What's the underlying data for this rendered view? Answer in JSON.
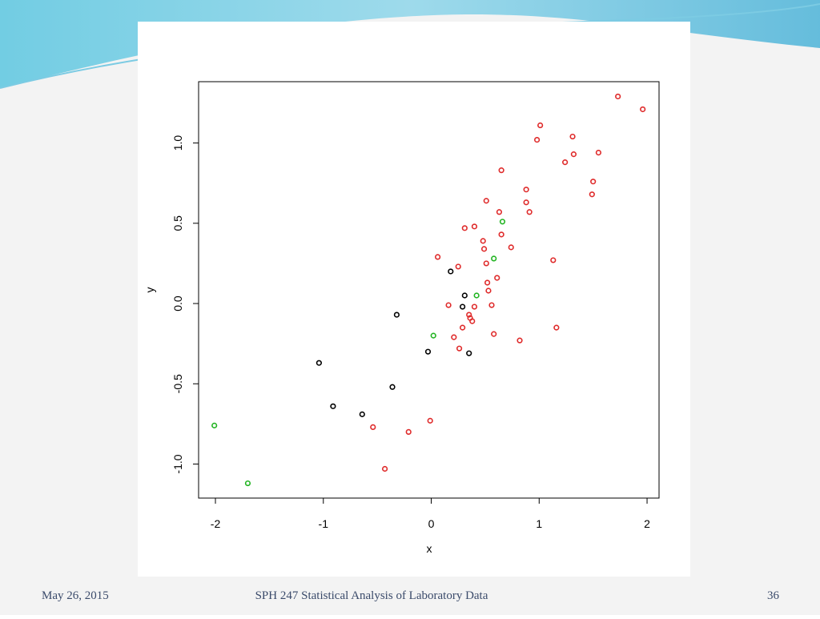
{
  "chart_data": {
    "type": "scatter",
    "xlabel": "x",
    "ylabel": "y",
    "xlim": [
      -2.156,
      2.111
    ],
    "ylim": [
      -1.212,
      1.382
    ],
    "xticks": [
      -2,
      -1,
      0,
      1,
      2
    ],
    "yticks": [
      {
        "value": -1,
        "label": "-1.0"
      },
      {
        "value": -0.5,
        "label": "-0.5"
      },
      {
        "value": 0,
        "label": "0.0"
      },
      {
        "value": 0.5,
        "label": "0.5"
      },
      {
        "value": 1,
        "label": "1.0"
      }
    ],
    "series": [
      {
        "color": "#000000",
        "x": [
          -1.04,
          -0.91,
          -0.64,
          -0.36,
          -0.32,
          -0.03,
          0.18,
          0.31,
          0.29,
          0.35
        ],
        "values": [
          -0.37,
          -0.64,
          -0.69,
          -0.52,
          -0.07,
          -0.3,
          0.2,
          0.05,
          -0.02,
          -0.31
        ]
      },
      {
        "color": "#df2a2a",
        "x": [
          1.73,
          1.96,
          1.01,
          0.98,
          1.31,
          1.32,
          1.55,
          1.24,
          0.65,
          1.5,
          1.49,
          0.88,
          0.51,
          0.88,
          0.63,
          0.91,
          0.31,
          0.4,
          0.65,
          0.48,
          0.49,
          0.74,
          0.06,
          0.51,
          0.25,
          1.13,
          0.61,
          0.52,
          0.53,
          0.16,
          0.56,
          0.4,
          0.35,
          0.36,
          0.38,
          0.29,
          0.58,
          0.21,
          1.16,
          0.82,
          0.26,
          -0.54,
          -0.01,
          -0.21,
          -0.43
        ],
        "values": [
          1.29,
          1.21,
          1.11,
          1.02,
          1.04,
          0.93,
          0.94,
          0.88,
          0.83,
          0.76,
          0.68,
          0.71,
          0.64,
          0.63,
          0.57,
          0.57,
          0.47,
          0.48,
          0.43,
          0.39,
          0.34,
          0.35,
          0.29,
          0.25,
          0.23,
          0.27,
          0.16,
          0.13,
          0.08,
          -0.01,
          -0.01,
          -0.02,
          -0.07,
          -0.09,
          -0.11,
          -0.15,
          -0.19,
          -0.21,
          -0.15,
          -0.23,
          -0.28,
          -0.77,
          -0.73,
          -0.8,
          -1.03
        ]
      },
      {
        "color": "#22b422",
        "x": [
          -2.01,
          -1.7,
          0.02,
          0.42,
          0.58,
          0.66
        ],
        "values": [
          -0.76,
          -1.12,
          -0.2,
          0.05,
          0.28,
          0.51
        ]
      }
    ]
  },
  "footer": {
    "date": "May 26, 2015",
    "title": "SPH 247 Statistical Analysis of Laboratory Data",
    "page": "36"
  }
}
